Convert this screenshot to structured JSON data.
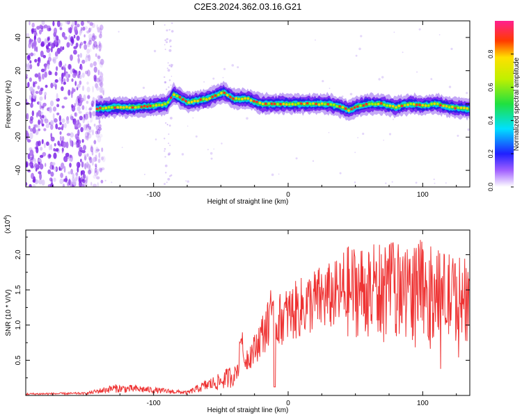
{
  "title": "C2E3.2024.362.03.16.G21",
  "chart_data": [
    {
      "type": "heatmap",
      "title": "C2E3.2024.362.03.16.G21",
      "xlabel": "Height of straight line (km)",
      "ylabel": "Frequency (Hz)",
      "xlim": [
        -195,
        135
      ],
      "ylim": [
        -50,
        50
      ],
      "xticks": [
        -100,
        0,
        100
      ],
      "yticks": [
        -40,
        -20,
        0,
        20,
        40
      ],
      "colorbar": {
        "label": "Normalized spectral amplitude",
        "range": [
          0,
          1
        ],
        "ticks": [
          "0.0",
          "0.2",
          "0.4",
          "0.6",
          "0.8"
        ]
      },
      "ridge": {
        "x": [
          -143,
          -130,
          -115,
          -100,
          -90,
          -85,
          -75,
          -60,
          -48,
          -40,
          -30,
          -20,
          -10,
          0,
          10,
          20,
          30,
          40,
          45,
          50,
          60,
          70,
          80,
          90,
          100,
          110,
          120,
          135
        ],
        "y": [
          -3,
          -2,
          -2,
          -1,
          0,
          6,
          1,
          3,
          7,
          3,
          3,
          0,
          0,
          0,
          0,
          0,
          0,
          -2,
          -4,
          -2,
          0,
          0,
          -2,
          0,
          -1,
          0,
          -2,
          -3
        ]
      },
      "noise_region_x": [
        -195,
        -143
      ]
    },
    {
      "type": "line",
      "xlabel": "Height of straight line (km)",
      "ylabel": "SNR (10 * V/V)",
      "y_multiplier": "(x10",
      "y_multiplier_exp": "4",
      "xlim": [
        -195,
        135
      ],
      "ylim": [
        0,
        23500
      ],
      "xticks": [
        -100,
        0,
        100
      ],
      "ytick_values": [
        5000,
        10000,
        15000,
        20000
      ],
      "ytick_labels": [
        "0.5",
        "1.0",
        "1.5",
        "2.0"
      ],
      "series": [
        {
          "color": "#ee3333",
          "envelope_x": [
            -195,
            -150,
            -130,
            -110,
            -90,
            -75,
            -60,
            -50,
            -40,
            -35,
            -30,
            -25,
            -20,
            -15,
            -10,
            -5,
            0,
            10,
            20,
            30,
            40,
            50,
            60,
            70,
            80,
            90,
            100,
            110,
            120,
            135
          ],
          "envelope_y": [
            200,
            300,
            1000,
            900,
            600,
            400,
            1500,
            2000,
            3000,
            4500,
            5500,
            6500,
            8500,
            10000,
            10000,
            11000,
            11500,
            12500,
            13500,
            14000,
            14500,
            15000,
            15000,
            15000,
            15000,
            15000,
            15000,
            14500,
            14000,
            13500
          ]
        }
      ]
    }
  ]
}
